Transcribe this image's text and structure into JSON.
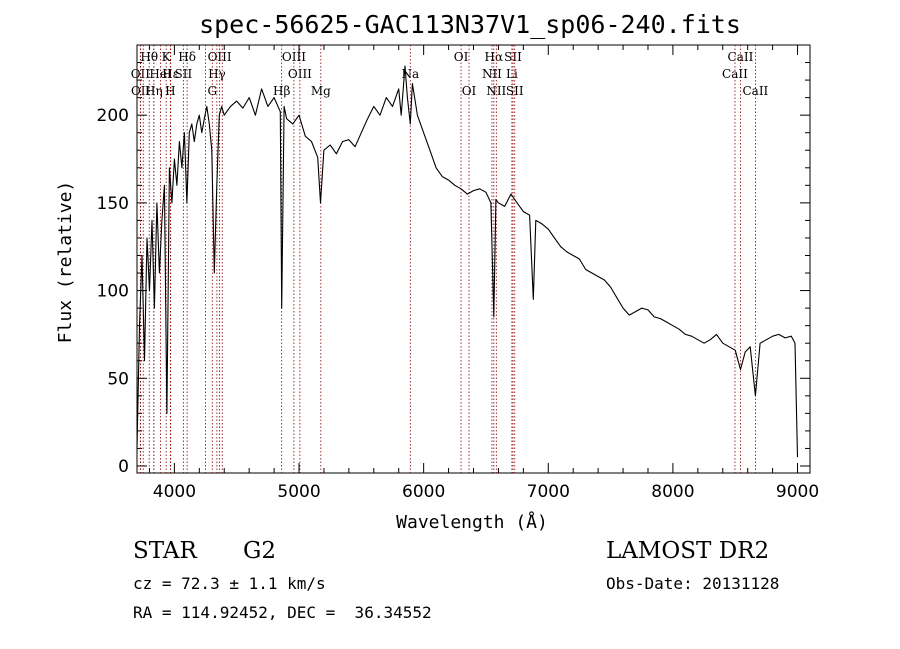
{
  "chart_data": {
    "type": "line",
    "title": "spec-56625-GAC113N37V1_sp06-240.fits",
    "xlabel": "Wavelength (Å)",
    "ylabel": "Flux (relative)",
    "xlim": [
      3700,
      9100
    ],
    "ylim": [
      -4,
      240
    ],
    "xticks": [
      4000,
      5000,
      6000,
      7000,
      8000,
      9000
    ],
    "yticks": [
      0,
      50,
      100,
      150,
      200
    ],
    "grid": false,
    "line_color": "#000000",
    "marker_color": "#8b0000",
    "series": [
      {
        "x": [
          3700,
          3720,
          3740,
          3760,
          3780,
          3800,
          3820,
          3840,
          3860,
          3880,
          3900,
          3920,
          3940,
          3960,
          3980,
          4000,
          4020,
          4040,
          4060,
          4080,
          4100,
          4120,
          4140,
          4160,
          4180,
          4200,
          4220,
          4240,
          4260,
          4280,
          4300,
          4320,
          4340,
          4360,
          4380,
          4400,
          4450,
          4500,
          4550,
          4600,
          4650,
          4700,
          4750,
          4800,
          4850,
          4861,
          4880,
          4900,
          4950,
          5000,
          5050,
          5100,
          5150,
          5172,
          5200,
          5250,
          5300,
          5350,
          5400,
          5450,
          5500,
          5550,
          5600,
          5650,
          5700,
          5750,
          5800,
          5820,
          5850,
          5870,
          5893,
          5910,
          5950,
          6000,
          6050,
          6100,
          6150,
          6200,
          6250,
          6300,
          6350,
          6400,
          6450,
          6500,
          6540,
          6563,
          6580,
          6600,
          6650,
          6700,
          6750,
          6800,
          6850,
          6880,
          6900,
          6950,
          7000,
          7050,
          7100,
          7150,
          7200,
          7250,
          7300,
          7350,
          7400,
          7450,
          7500,
          7550,
          7600,
          7650,
          7700,
          7750,
          7800,
          7850,
          7900,
          7950,
          8000,
          8050,
          8100,
          8150,
          8200,
          8250,
          8300,
          8350,
          8400,
          8450,
          8500,
          8542,
          8580,
          8620,
          8662,
          8700,
          8750,
          8800,
          8850,
          8900,
          8950,
          8980,
          9000
        ],
        "y": [
          10,
          80,
          120,
          60,
          130,
          100,
          140,
          90,
          150,
          110,
          140,
          160,
          30,
          170,
          150,
          175,
          160,
          185,
          170,
          190,
          150,
          190,
          195,
          185,
          195,
          200,
          190,
          198,
          205,
          195,
          180,
          110,
          160,
          200,
          205,
          200,
          205,
          208,
          204,
          210,
          200,
          215,
          205,
          210,
          202,
          90,
          205,
          198,
          195,
          200,
          188,
          185,
          176,
          150,
          180,
          183,
          178,
          185,
          186,
          182,
          190,
          198,
          205,
          200,
          210,
          205,
          215,
          200,
          228,
          210,
          195,
          218,
          200,
          190,
          180,
          170,
          165,
          163,
          160,
          158,
          155,
          157,
          158,
          156,
          150,
          85,
          152,
          150,
          148,
          155,
          150,
          145,
          143,
          95,
          140,
          138,
          135,
          130,
          125,
          122,
          120,
          118,
          112,
          110,
          108,
          106,
          102,
          96,
          90,
          86,
          88,
          90,
          89,
          85,
          84,
          82,
          80,
          78,
          75,
          74,
          72,
          70,
          72,
          75,
          70,
          68,
          66,
          55,
          65,
          68,
          40,
          70,
          72,
          74,
          75,
          73,
          74,
          70,
          5
        ]
      }
    ],
    "spectral_lines": [
      {
        "label": "Hθ",
        "wavelength": 3798,
        "row": 0
      },
      {
        "label": "HeI",
        "wavelength": 3889,
        "row": 1
      },
      {
        "label": "K",
        "wavelength": 3934,
        "row": 0
      },
      {
        "label": "SII",
        "wavelength": 4072,
        "row": 1
      },
      {
        "label": "Hδ",
        "wavelength": 4102,
        "row": 0
      },
      {
        "label": "OIII",
        "wavelength": 4363,
        "row": 0
      },
      {
        "label": "Hγ",
        "wavelength": 4341,
        "row": 1
      },
      {
        "label": "G",
        "wavelength": 4304,
        "row": 2
      },
      {
        "label": "OIII",
        "wavelength": 4959,
        "row": 0
      },
      {
        "label": "OIII",
        "wavelength": 5007,
        "row": 1
      },
      {
        "label": "Hβ",
        "wavelength": 4861,
        "row": 2
      },
      {
        "label": "Mg",
        "wavelength": 5175,
        "row": 2
      },
      {
        "label": "Na",
        "wavelength": 5893,
        "row": 1
      },
      {
        "label": "OI",
        "wavelength": 6300,
        "row": 0
      },
      {
        "label": "OI",
        "wavelength": 6364,
        "row": 2
      },
      {
        "label": "Hα",
        "wavelength": 6563,
        "row": 0
      },
      {
        "label": "SII",
        "wavelength": 6717,
        "row": 0
      },
      {
        "label": "NII",
        "wavelength": 6548,
        "row": 1
      },
      {
        "label": "Li",
        "wavelength": 6708,
        "row": 1
      },
      {
        "label": "NII",
        "wavelength": 6583,
        "row": 2
      },
      {
        "label": "SII",
        "wavelength": 6731,
        "row": 2
      },
      {
        "label": "CaII",
        "wavelength": 8542,
        "row": 0
      },
      {
        "label": "CaII",
        "wavelength": 8498,
        "row": 1
      },
      {
        "label": "CaII",
        "wavelength": 8662,
        "row": 2
      },
      {
        "label": "OII",
        "wavelength": 3727,
        "row": 1
      },
      {
        "label": "OII",
        "wavelength": 3729,
        "row": 2
      },
      {
        "label": "H",
        "wavelength": 3968,
        "row": 2
      },
      {
        "label": "Hη",
        "wavelength": 3835,
        "row": 2
      },
      {
        "label": "Hε",
        "wavelength": 3970,
        "row": 1
      }
    ],
    "extra_markers": [
      3750,
      3835,
      3970,
      4250,
      4384
    ]
  },
  "info": {
    "object_type": "STAR",
    "subclass": "G2",
    "survey": "LAMOST DR2",
    "cz": "cz = 72.3 ± 1.1 km/s",
    "obs_date": "Obs-Date: 20131128",
    "coords": "RA = 114.92452, DEC =  36.34552"
  }
}
